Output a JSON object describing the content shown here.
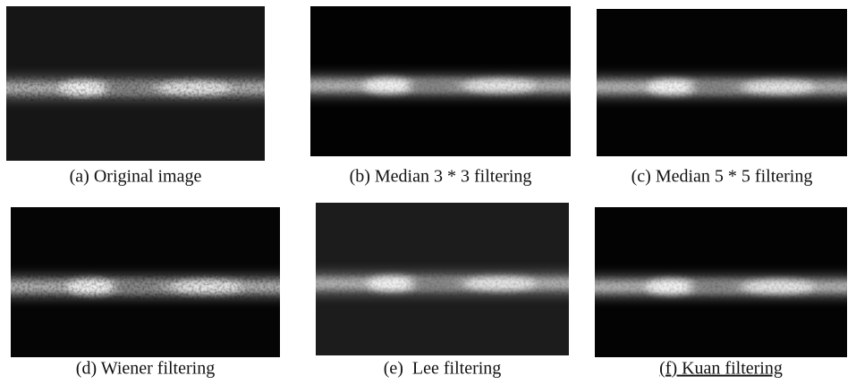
{
  "figure": {
    "panels": [
      {
        "caption": "(a) Original image"
      },
      {
        "caption": "(b) Median 3 * 3 filtering"
      },
      {
        "caption": "(c) Median 5 * 5 filtering"
      },
      {
        "caption": "(d) Wiener filtering"
      },
      {
        "caption": "(e)  Lee filtering"
      },
      {
        "caption": "(f) Kuan filtering"
      }
    ]
  }
}
